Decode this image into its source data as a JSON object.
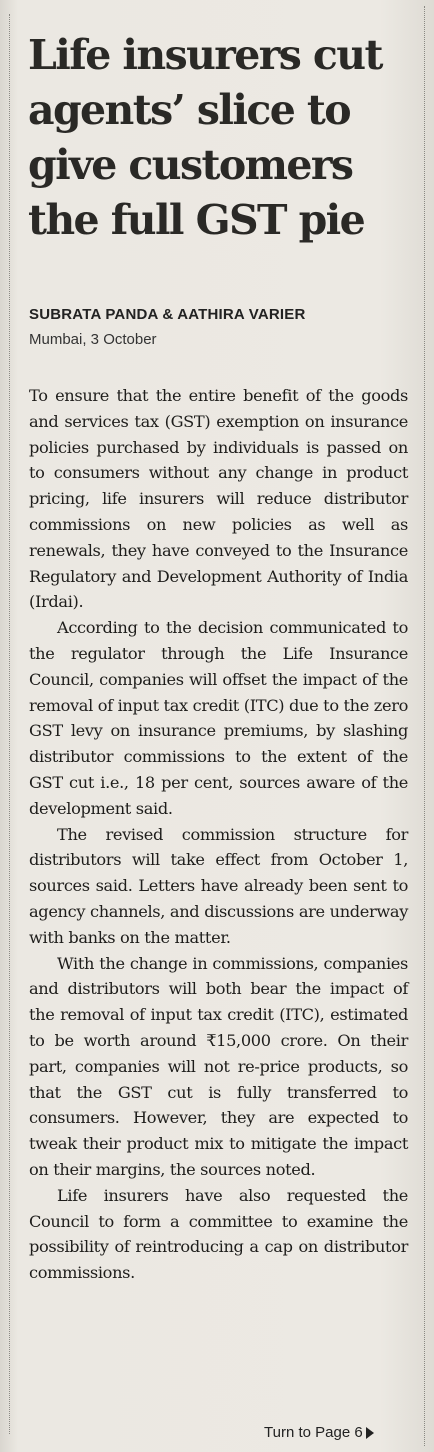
{
  "article": {
    "headline": "Life insurers cut agents’ slice to give customers the full GST pie",
    "byline": "SUBRATA PANDA & AATHIRA VARIER",
    "dateline": "Mumbai, 3 October",
    "paragraphs": [
      "To ensure that the entire benefit of the goods and services tax (GST) exemption on insurance policies purchased by individuals is passed on to consumers without any change in product pricing, life insurers will reduce distributor commissions on new policies as well as renewals, they have conveyed to the Insurance Regulatory and Development Authority of India (Irdai).",
      "According to the decision communicated to the regulator through the Life Insurance Council, companies will offset the impact of the removal of input tax credit (ITC) due to the zero GST levy on insurance premiums, by slashing distributor commissions to the extent of the GST cut i.e., 18 per cent, sources aware of the development said.",
      "The revised commission structure for distributors will take effect from October 1, sources said. Letters have already been sent to agency channels, and discussions are underway with banks on the matter.",
      "With the change in commissions, companies and distributors will both bear the impact of the removal of input tax credit (ITC), estimated to be worth around ₹15,000 crore. On their part, companies will not re-price products, so that the GST cut is fully transferred to consumers. However, they are expected to tweak their product mix to mitigate the impact on their margins, the sources noted.",
      "Life insurers have also requested the Council to form a committee to examine the possibility of reintroducing a cap on distributor commissions."
    ],
    "jump_label": "Turn to Page 6",
    "jump_icon": "triangle-right-icon"
  }
}
